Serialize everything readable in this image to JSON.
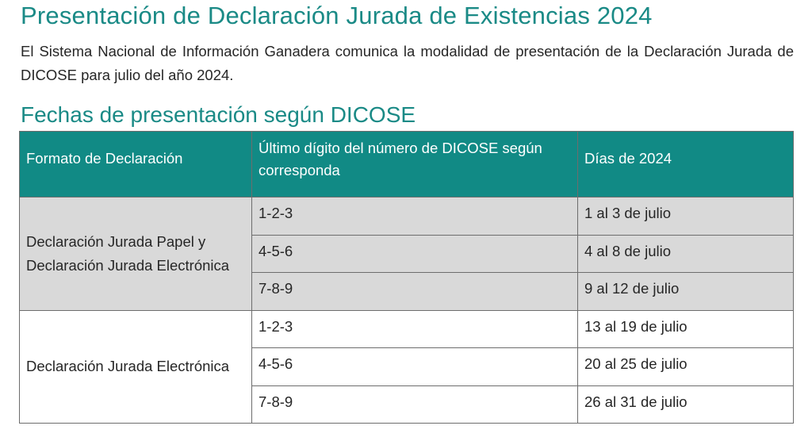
{
  "title": "Presentación de Declaración Jurada de Existencias 2024",
  "intro": "El Sistema Nacional de Información Ganadera comunica la modalidad de presentación de la Declaración Jurada de DICOSE para julio del año 2024.",
  "section_title": "Fechas de presentación según DICOSE",
  "table": {
    "headers": [
      "Formato de Declaración",
      "Último dígito del número de DICOSE según corresponda",
      "Días de 2024"
    ],
    "groups": [
      {
        "format": "Declaración Jurada Papel y Declaración Jurada Electrónica",
        "rows": [
          {
            "digits": "1-2-3",
            "days": "1 al 3 de julio"
          },
          {
            "digits": "4-5-6",
            "days": "4 al 8 de julio"
          },
          {
            "digits": "7-8-9",
            "days": "9 al 12 de julio"
          }
        ]
      },
      {
        "format": "Declaración Jurada Electrónica",
        "rows": [
          {
            "digits": "1-2-3",
            "days": "13 al 19 de julio"
          },
          {
            "digits": "4-5-6",
            "days": "20 al 25 de julio"
          },
          {
            "digits": "7-8-9",
            "days": "26 al 31 de julio"
          }
        ]
      }
    ]
  },
  "colors": {
    "accent": "#1a8a86",
    "header_bg": "#118a85",
    "shaded_row": "#d9d9d9"
  }
}
